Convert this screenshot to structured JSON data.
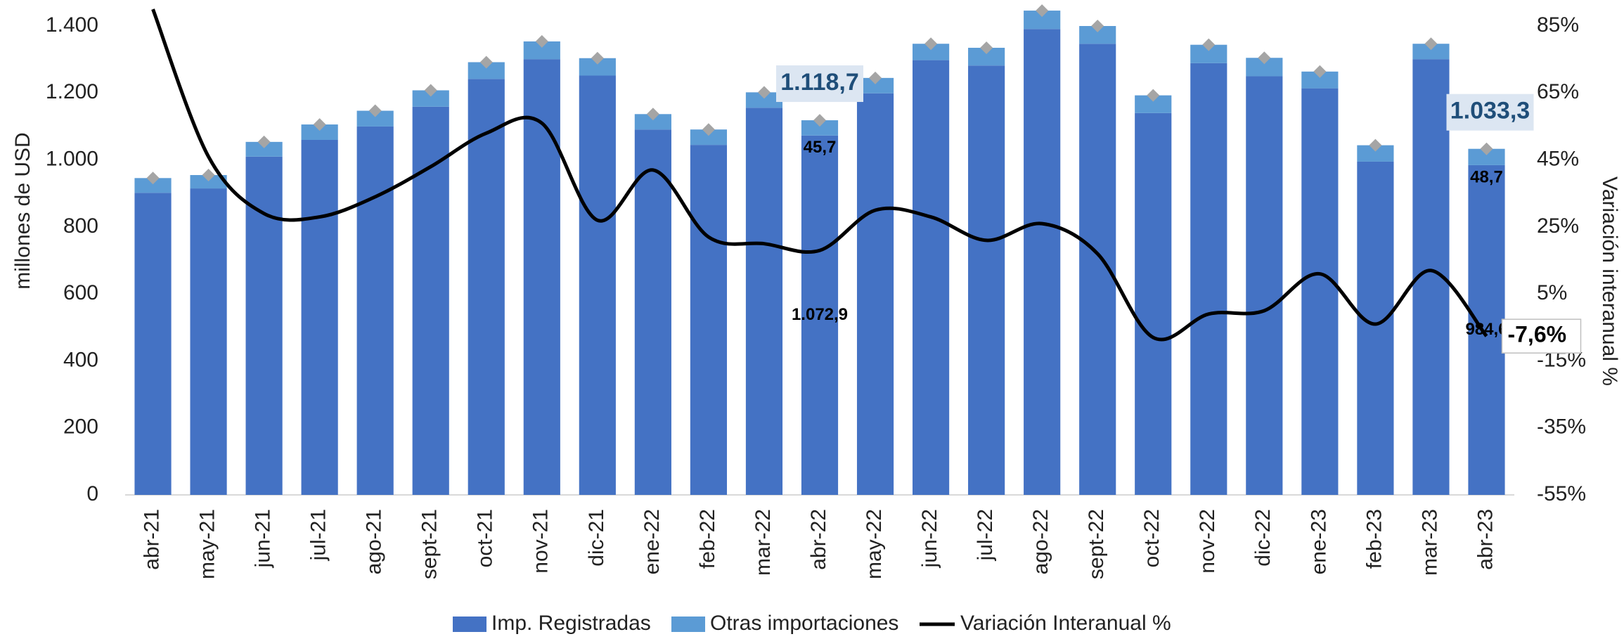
{
  "chart_data": {
    "type": "bar-line",
    "y_label": "millones de  USD",
    "y2_label": "Variación  interanual %",
    "categories": [
      "abr-21",
      "may-21",
      "jun-21",
      "jul-21",
      "ago-21",
      "sept-21",
      "oct-21",
      "nov-21",
      "dic-21",
      "ene-22",
      "feb-22",
      "mar-22",
      "abr-22",
      "may-22",
      "jun-22",
      "jul-22",
      "ago-22",
      "sept-22",
      "oct-22",
      "nov-22",
      "dic-22",
      "ene-23",
      "feb-23",
      "mar-23",
      "abr-23"
    ],
    "series": [
      {
        "name": "Imp. Registradas",
        "color": "#4472c4",
        "stacked": true,
        "values": [
          902,
          915,
          1010,
          1060,
          1100,
          1159,
          1242,
          1301,
          1252,
          1091,
          1045,
          1156,
          1072.9,
          1199,
          1298,
          1282,
          1391,
          1347,
          1140,
          1289,
          1250,
          1214,
          995,
          1301,
          984.6
        ],
        "value_labels": [
          null,
          null,
          null,
          null,
          null,
          null,
          null,
          null,
          null,
          null,
          null,
          null,
          "1.072,9",
          null,
          null,
          null,
          null,
          null,
          null,
          null,
          null,
          null,
          null,
          null,
          "984,6"
        ]
      },
      {
        "name": "Otras importaciones",
        "color": "#5b9bd5",
        "stacked": true,
        "values": [
          44,
          40,
          44,
          46,
          47,
          49,
          50,
          53,
          52,
          46,
          46,
          46,
          45.7,
          46,
          49,
          53,
          55,
          53,
          53,
          55,
          55,
          50,
          49,
          46,
          48.7
        ],
        "value_labels": [
          null,
          null,
          null,
          null,
          null,
          null,
          null,
          null,
          null,
          null,
          null,
          null,
          "45,7",
          null,
          null,
          null,
          null,
          null,
          null,
          null,
          null,
          null,
          null,
          null,
          "48,7"
        ]
      },
      {
        "name": "Variación Interanual %",
        "color": "#000000",
        "type": "line",
        "axis": "y2",
        "values": [
          90,
          46,
          29,
          28,
          34,
          43,
          53,
          56,
          27,
          42,
          22,
          20,
          18,
          30,
          28,
          21,
          26,
          17,
          -8,
          -1,
          0,
          11,
          -4,
          12,
          -7.6
        ],
        "value_labels": [
          null,
          null,
          null,
          null,
          null,
          null,
          null,
          null,
          null,
          null,
          null,
          null,
          null,
          null,
          null,
          null,
          null,
          null,
          null,
          null,
          null,
          null,
          null,
          null,
          "-7,6%"
        ]
      }
    ],
    "annotations": [
      {
        "category": "abr-22",
        "value": 1118.7,
        "text": "1.118,7"
      },
      {
        "category": "abr-23",
        "value": 1033.3,
        "text": "1.033,3"
      }
    ],
    "marker_color": "#a5a5a5",
    "ylim": [
      0,
      1400
    ],
    "yticks": [
      0,
      200,
      400,
      600,
      800,
      {
        "value": 1000,
        "label": "1.000"
      },
      {
        "value": 1200,
        "label": "1.200"
      },
      {
        "value": 1400,
        "label": "1.400"
      }
    ],
    "y2lim": [
      -55,
      85
    ],
    "y2ticks": [
      {
        "value": -55,
        "label": "-55%"
      },
      {
        "value": -35,
        "label": "-35%"
      },
      {
        "value": -15,
        "label": "-15%"
      },
      {
        "value": 5,
        "label": "5%"
      },
      {
        "value": 25,
        "label": "25%"
      },
      {
        "value": 45,
        "label": "45%"
      },
      {
        "value": 65,
        "label": "65%"
      },
      {
        "value": 85,
        "label": "85%"
      }
    ],
    "grid": false,
    "legend": "bottom"
  }
}
